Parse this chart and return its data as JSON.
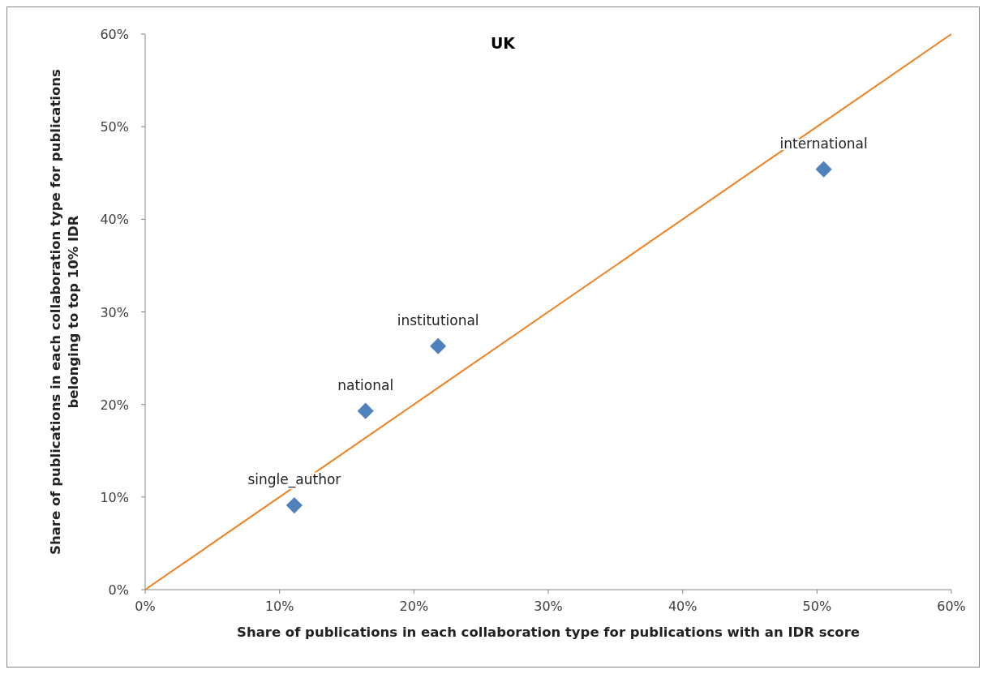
{
  "chart_data": {
    "type": "scatter",
    "title": "UK",
    "xlabel": "Share of publications in each collaboration type for publications with an IDR score",
    "ylabel": "Share of publications in each collaboration type for publications belonging to top 10% IDR",
    "xlim": [
      0,
      60
    ],
    "ylim": [
      0,
      60
    ],
    "xticks": [
      {
        "value": 0,
        "label": "0%"
      },
      {
        "value": 10,
        "label": "10%"
      },
      {
        "value": 20,
        "label": "20%"
      },
      {
        "value": 30,
        "label": "30%"
      },
      {
        "value": 40,
        "label": "40%"
      },
      {
        "value": 50,
        "label": "50%"
      },
      {
        "value": 60,
        "label": "60%"
      }
    ],
    "yticks": [
      {
        "value": 0,
        "label": "0%"
      },
      {
        "value": 10,
        "label": "10%"
      },
      {
        "value": 20,
        "label": "20%"
      },
      {
        "value": 30,
        "label": "30%"
      },
      {
        "value": 40,
        "label": "40%"
      },
      {
        "value": 50,
        "label": "50%"
      },
      {
        "value": 60,
        "label": "60%"
      }
    ],
    "series": [
      {
        "color": "#4f81bd",
        "marker": "diamond",
        "x": [
          11.1,
          16.4,
          21.8,
          50.5
        ],
        "values": [
          9.1,
          19.3,
          26.3,
          45.4
        ]
      },
      {
        "type": "line",
        "color": "#f07f20",
        "marker": "none",
        "line_style": "solid",
        "x": [
          0,
          60
        ],
        "values": [
          0,
          60
        ]
      }
    ],
    "annotations": [
      {
        "text": "single_author",
        "x": 11.1,
        "y": 9.1
      },
      {
        "text": "national",
        "x": 16.4,
        "y": 19.3
      },
      {
        "text": "institutional",
        "x": 21.8,
        "y": 26.3
      },
      {
        "text": "international",
        "x": 50.5,
        "y": 45.4
      }
    ],
    "grid": false
  }
}
